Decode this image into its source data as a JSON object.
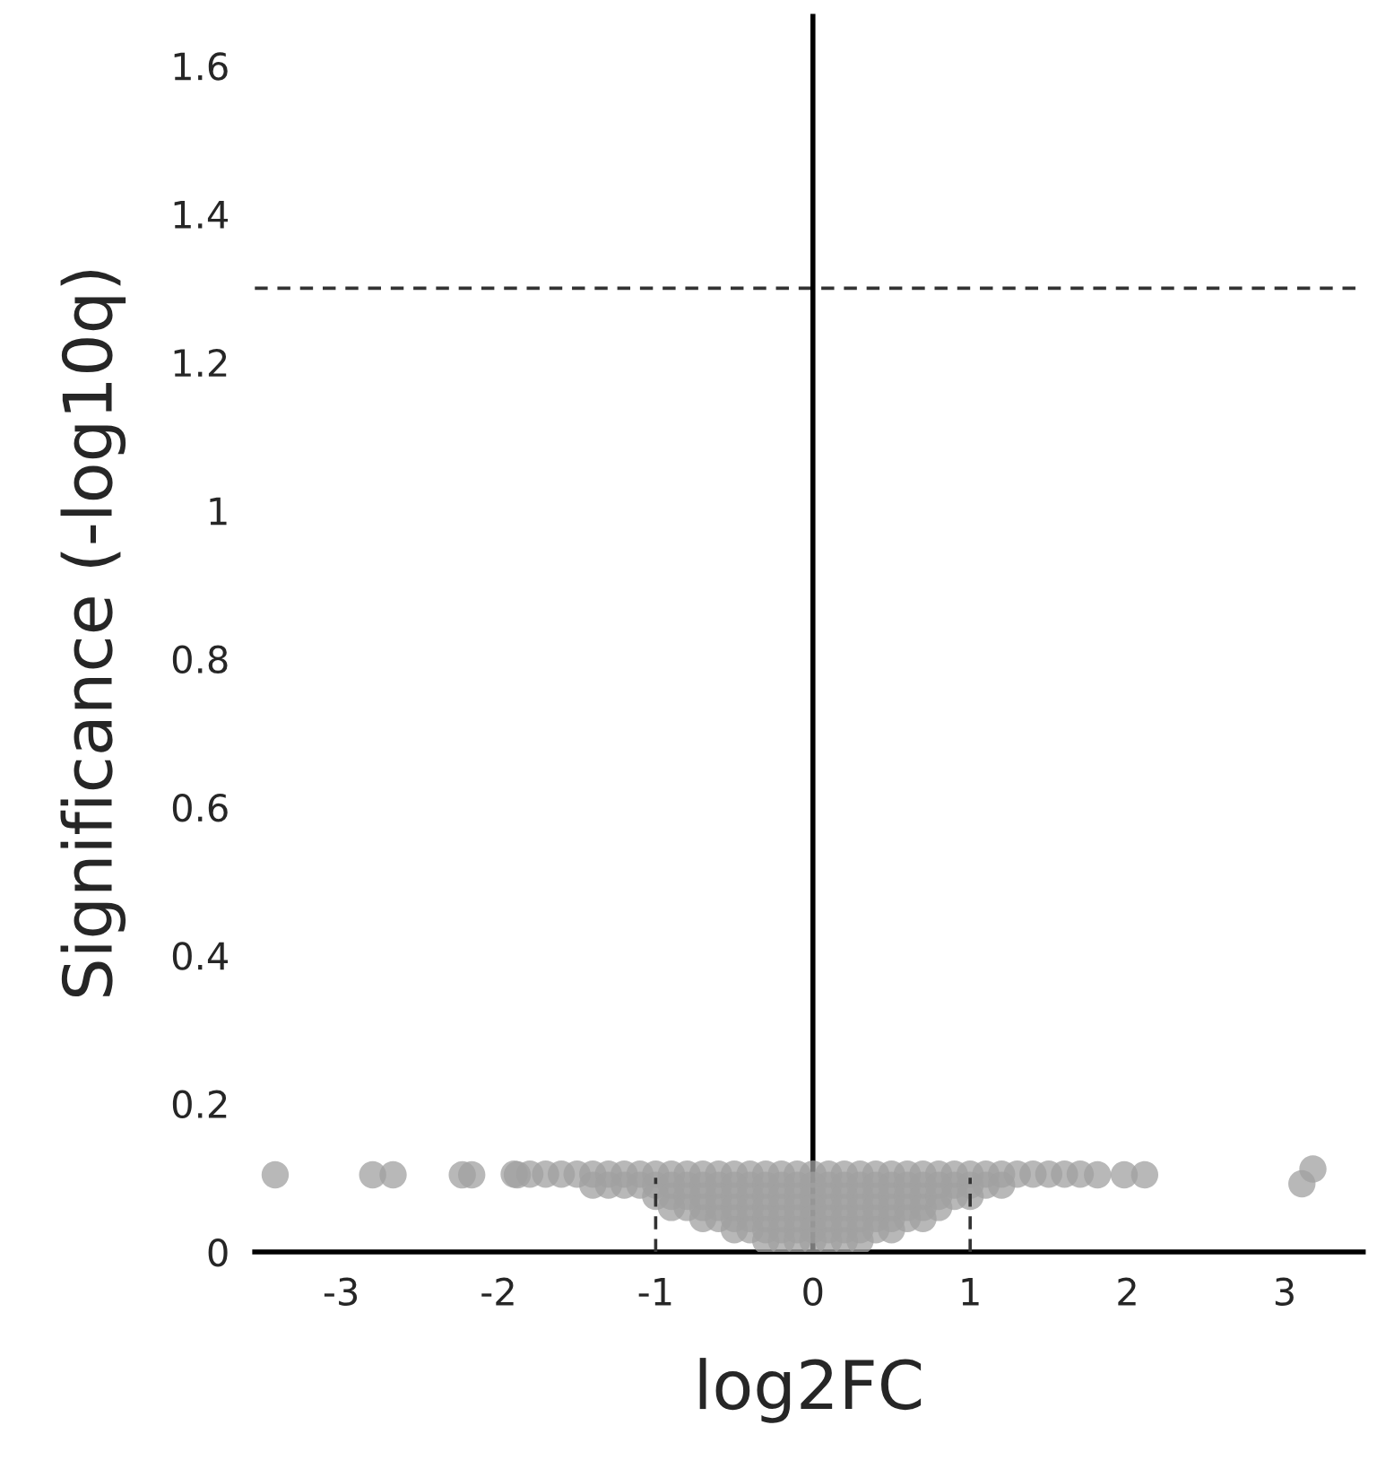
{
  "chart_data": {
    "type": "scatter",
    "xlabel": "log2FC",
    "ylabel": "Significance (-log10q)",
    "xlim": [
      -3.55,
      3.5
    ],
    "ylim": [
      0,
      1.67
    ],
    "xticks": [
      {
        "value": -3,
        "label": "-3"
      },
      {
        "value": -2,
        "label": "-2"
      },
      {
        "value": -1,
        "label": "-1"
      },
      0,
      1,
      2,
      3
    ],
    "yticks": [
      0,
      0.2,
      0.4,
      0.6,
      0.8,
      1,
      1.2,
      1.4,
      1.6
    ],
    "grid": false,
    "legend": false,
    "ref_lines": [
      {
        "axis": "y",
        "value": 1.3,
        "line_style": "dashed",
        "color": "#333333"
      },
      {
        "axis": "x",
        "value": 0,
        "line_style": "solid",
        "color": "#000000"
      }
    ],
    "series": [
      {
        "type": "line",
        "color": "#333333",
        "line_style": "dashed",
        "marker": "none",
        "x": [
          -1,
          -1
        ],
        "values": [
          0,
          0.1
        ]
      },
      {
        "type": "line",
        "color": "#333333",
        "line_style": "dashed",
        "marker": "none",
        "x": [
          1,
          1
        ],
        "values": [
          0,
          0.1
        ]
      },
      {
        "color": "#a0a0a0",
        "marker": "circle",
        "x": [
          -3.42,
          -2.8,
          -2.67,
          -2.23,
          -2.17,
          -1.88,
          1.81,
          1.98,
          2.11,
          3.11,
          3.18,
          -1.9,
          -1.8,
          -1.7,
          -1.6,
          -1.5,
          -1.4,
          -1.3,
          -1.2,
          -1.1,
          -1.0,
          -0.9,
          -0.8,
          -0.7,
          -0.6,
          -0.5,
          -0.4,
          -0.3,
          -0.2,
          -0.1,
          0.0,
          0.1,
          0.2,
          0.3,
          0.4,
          0.5,
          0.6,
          0.7,
          0.8,
          0.9,
          1.0,
          1.1,
          1.2,
          1.3,
          1.4,
          1.5,
          1.6,
          1.7,
          -1.4,
          -1.3,
          -1.2,
          -1.1,
          -1.0,
          -0.9,
          -0.8,
          -0.7,
          -0.6,
          -0.5,
          -0.4,
          -0.3,
          -0.2,
          -0.1,
          0.0,
          0.1,
          0.2,
          0.3,
          0.4,
          0.5,
          0.6,
          0.7,
          0.8,
          0.9,
          1.0,
          1.1,
          1.2,
          -1.0,
          -0.9,
          -0.8,
          -0.7,
          -0.6,
          -0.5,
          -0.4,
          -0.3,
          -0.2,
          -0.1,
          0.0,
          0.1,
          0.2,
          0.3,
          0.4,
          0.5,
          0.6,
          0.7,
          0.8,
          0.9,
          1.0,
          -0.9,
          -0.8,
          -0.7,
          -0.6,
          -0.5,
          -0.4,
          -0.3,
          -0.2,
          -0.1,
          0.0,
          0.1,
          0.2,
          0.3,
          0.4,
          0.5,
          0.6,
          0.7,
          0.8,
          -0.7,
          -0.6,
          -0.5,
          -0.4,
          -0.3,
          -0.2,
          -0.1,
          0.0,
          0.1,
          0.2,
          0.3,
          0.4,
          0.5,
          0.6,
          0.7,
          -0.5,
          -0.4,
          -0.3,
          -0.2,
          -0.1,
          0.0,
          0.1,
          0.2,
          0.3,
          0.4,
          0.5,
          -0.3,
          -0.2,
          -0.1,
          0.0,
          0.1,
          0.2,
          0.3
        ],
        "values": [
          0.104,
          0.104,
          0.104,
          0.104,
          0.104,
          0.104,
          0.104,
          0.104,
          0.104,
          0.092,
          0.112,
          0.105,
          0.105,
          0.105,
          0.105,
          0.105,
          0.105,
          0.105,
          0.105,
          0.105,
          0.105,
          0.105,
          0.105,
          0.105,
          0.105,
          0.105,
          0.105,
          0.105,
          0.105,
          0.105,
          0.105,
          0.105,
          0.105,
          0.105,
          0.105,
          0.105,
          0.105,
          0.105,
          0.105,
          0.105,
          0.105,
          0.105,
          0.105,
          0.105,
          0.105,
          0.105,
          0.105,
          0.105,
          0.09,
          0.09,
          0.09,
          0.09,
          0.09,
          0.09,
          0.09,
          0.09,
          0.09,
          0.09,
          0.09,
          0.09,
          0.09,
          0.09,
          0.09,
          0.09,
          0.09,
          0.09,
          0.09,
          0.09,
          0.09,
          0.09,
          0.09,
          0.09,
          0.09,
          0.09,
          0.09,
          0.075,
          0.075,
          0.075,
          0.075,
          0.075,
          0.075,
          0.075,
          0.075,
          0.075,
          0.075,
          0.075,
          0.075,
          0.075,
          0.075,
          0.075,
          0.075,
          0.075,
          0.075,
          0.075,
          0.075,
          0.075,
          0.06,
          0.06,
          0.06,
          0.06,
          0.06,
          0.06,
          0.06,
          0.06,
          0.06,
          0.06,
          0.06,
          0.06,
          0.06,
          0.06,
          0.06,
          0.06,
          0.06,
          0.06,
          0.045,
          0.045,
          0.045,
          0.045,
          0.045,
          0.045,
          0.045,
          0.045,
          0.045,
          0.045,
          0.045,
          0.045,
          0.045,
          0.045,
          0.045,
          0.03,
          0.03,
          0.03,
          0.03,
          0.03,
          0.03,
          0.03,
          0.03,
          0.03,
          0.03,
          0.03,
          0.015,
          0.015,
          0.015,
          0.015,
          0.015,
          0.015,
          0.015
        ]
      }
    ]
  }
}
